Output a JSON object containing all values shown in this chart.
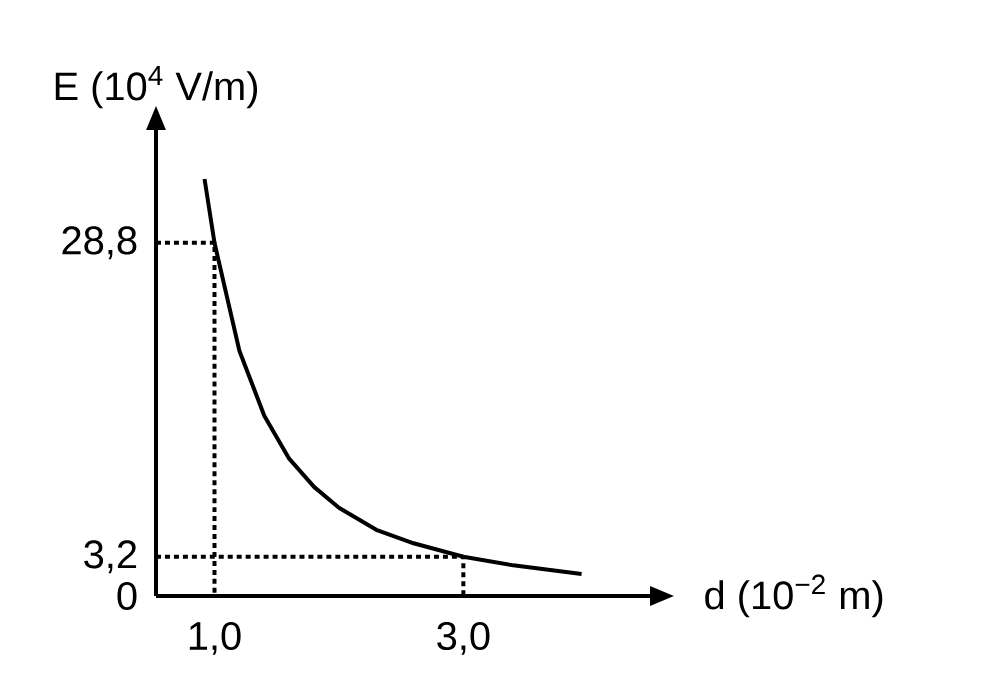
{
  "chart_data": {
    "type": "line",
    "xlabel": "d (10$^{−2}$ m)",
    "ylabel": "E (10$^{4}$ V/m)",
    "xlim": [
      0.53,
      4.5
    ],
    "ylim": [
      0,
      38
    ],
    "xticks": [
      {
        "value": 1,
        "label": "1,0"
      },
      {
        "value": 3,
        "label": "3,0"
      }
    ],
    "yticks": [
      {
        "value": 0,
        "label": "0"
      },
      {
        "value": 3.2,
        "label": "3,2"
      },
      {
        "value": 28.8,
        "label": "28,8"
      }
    ],
    "series": [
      {
        "color": "#000000",
        "line_style": "solid",
        "x": [
          0.92,
          1,
          1.2,
          1.4,
          1.6,
          1.8,
          2,
          2.3,
          2.6,
          3,
          3.4,
          3.95
        ],
        "values": [
          34,
          28.8,
          20,
          14.7,
          11.2,
          8.9,
          7.2,
          5.4,
          4.3,
          3.2,
          2.5,
          1.8
        ]
      },
      {
        "color": "#000000",
        "line_style": "dotted",
        "x": [
          0.53,
          1,
          1
        ],
        "values": [
          28.8,
          28.8,
          0
        ]
      },
      {
        "color": "#000000",
        "line_style": "dotted",
        "x": [
          0.53,
          3,
          3
        ],
        "values": [
          3.2,
          3.2,
          0
        ]
      }
    ],
    "marker": "none",
    "grid": false
  }
}
